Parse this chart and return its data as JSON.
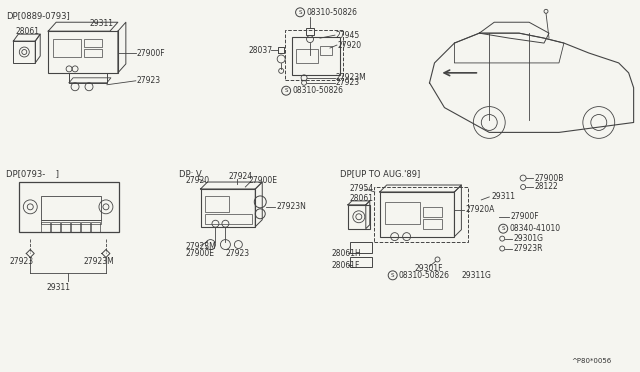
{
  "bg_color": "#f5f5f0",
  "line_color": "#444444",
  "text_color": "#333333",
  "fig_width": 6.4,
  "fig_height": 3.72,
  "watermark": "^P80*0056",
  "labels": {
    "tl": "DP[0889-0793]",
    "bl": "DP[0793-    ]",
    "bm": "DP: V",
    "br": "DP[UP TO AUG.'89]"
  }
}
